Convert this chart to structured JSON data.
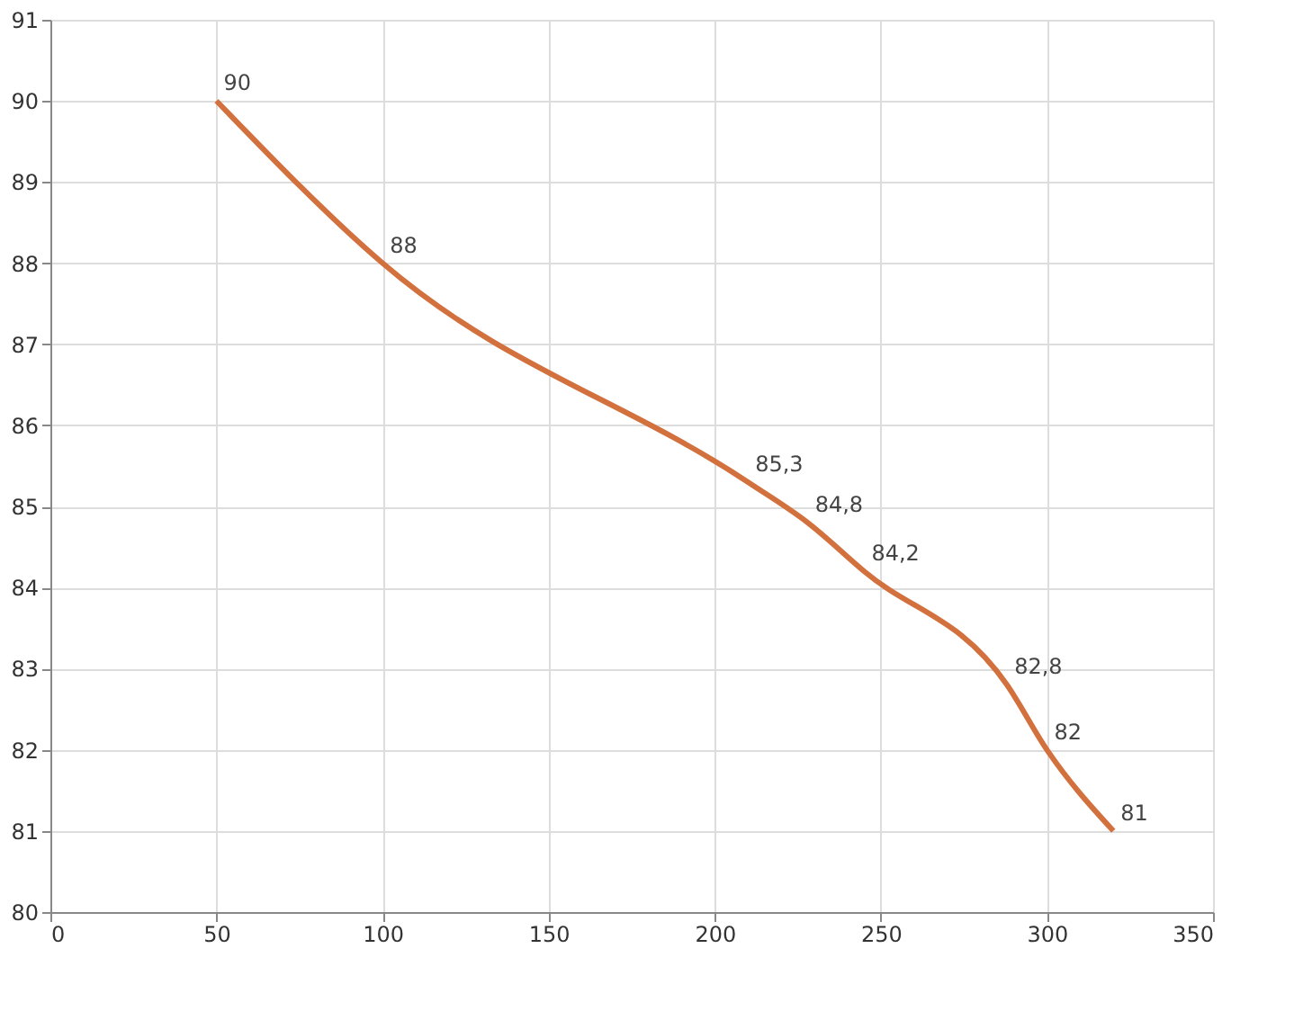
{
  "chart_data": {
    "type": "line",
    "x": [
      50,
      100,
      210,
      228,
      245,
      288,
      300,
      320
    ],
    "series": [
      {
        "color": "#d2703e",
        "values": [
          90,
          88,
          85.3,
          84.8,
          84.2,
          82.8,
          82,
          81
        ],
        "value_labels": [
          "90",
          "88",
          "85,3",
          "84,8",
          "84,2",
          "82,8",
          "82",
          "81"
        ]
      }
    ],
    "xlim": [
      0,
      350
    ],
    "xticks": [
      0,
      50,
      100,
      150,
      200,
      250,
      300,
      350
    ],
    "ylim": [
      80,
      91
    ],
    "yticks": [
      80,
      81,
      82,
      83,
      84,
      85,
      86,
      87,
      88,
      89,
      90,
      91
    ],
    "grid": true,
    "marker": "none",
    "line_style": "solid"
  }
}
